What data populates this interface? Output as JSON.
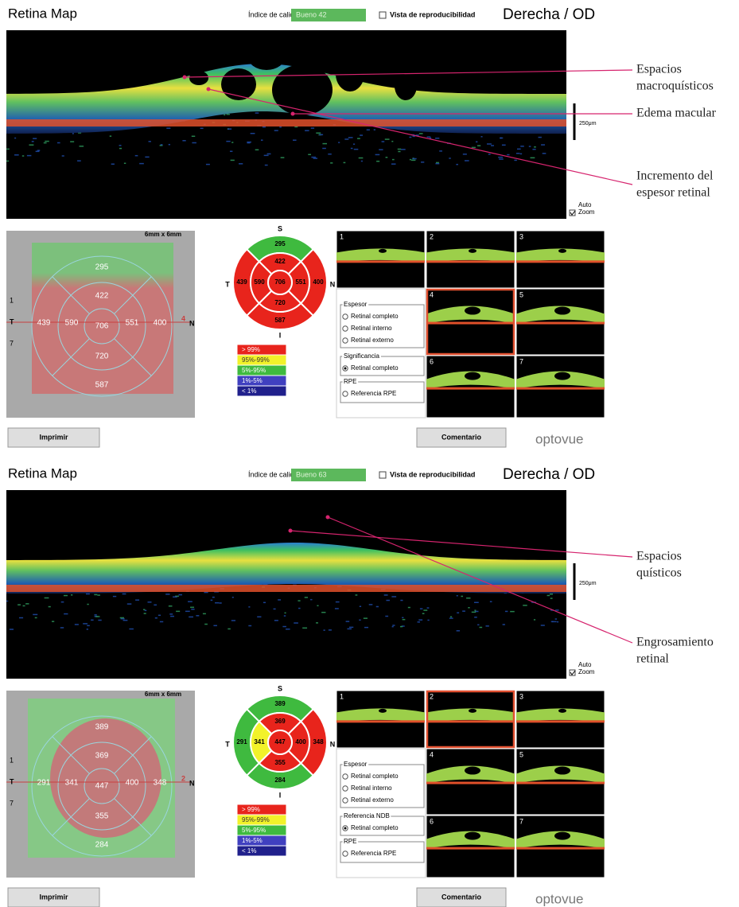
{
  "panels": [
    {
      "title": "Retina Map",
      "quality_label": "Índice de calidad",
      "quality": "Bueno  42",
      "reproducibility": "Vista de reproducibilidad",
      "eye": "Derecha / OD",
      "scale": "250μm",
      "auto_zoom": [
        "Auto",
        "Zoom"
      ],
      "annotations": [
        [
          "Espacios",
          "macroquísticos"
        ],
        [
          "Edema macular"
        ],
        [
          "Incremento del",
          "espesor retinal"
        ]
      ],
      "fundus": {
        "size": "6mm x 6mm",
        "left_marks": [
          "1",
          "T",
          "7"
        ],
        "right_marks": [
          "4",
          "N"
        ]
      },
      "etdrs": {
        "directions": [
          "S",
          "T",
          "N",
          "I"
        ],
        "center": 706,
        "center_color": "#e8241c",
        "inner": [
          422,
          590,
          551,
          720
        ],
        "inner_colors": [
          "#e8241c",
          "#e8241c",
          "#e8241c",
          "#e8241c"
        ],
        "outer": [
          295,
          439,
          400,
          587
        ],
        "outer_colors": [
          "#3fba3f",
          "#e8241c",
          "#e8241c",
          "#e8241c"
        ]
      },
      "legend": [
        {
          "label": "> 99%",
          "color": "#e8241c"
        },
        {
          "label": "95%-99%",
          "color": "#f2f22a"
        },
        {
          "label": "5%-95%",
          "color": "#3fba3f"
        },
        {
          "label": "1%-5%",
          "color": "#4040c0"
        },
        {
          "label": "< 1%",
          "color": "#20208c"
        }
      ],
      "thumbnails": [
        "1",
        "2",
        "3",
        "4",
        "5",
        "6",
        "7"
      ],
      "selected_thumbnail": 3,
      "option_groups": [
        {
          "title": "Espesor",
          "options": [
            "Retinal completo",
            "Retinal interno",
            "Retinal externo"
          ]
        },
        {
          "title": "Significancia",
          "options": [
            "Retinal completo"
          ],
          "checked": 0
        },
        {
          "title": "RPE",
          "options": [
            "Referencia RPE"
          ]
        }
      ],
      "buttons": [
        "Imprimir",
        "Comentario"
      ],
      "logo": "optovue"
    },
    {
      "title": "Retina Map",
      "quality_label": "Índice de calidad",
      "quality": "Bueno  63",
      "reproducibility": "Vista de reproducibilidad",
      "eye": "Derecha / OD",
      "scale": "250μm",
      "auto_zoom": [
        "Auto",
        "Zoom"
      ],
      "annotations": [
        [
          "Espacios",
          "quísticos"
        ],
        [
          "Engrosamiento",
          "retinal"
        ]
      ],
      "fundus": {
        "size": "6mm x 6mm",
        "left_marks": [
          "1",
          "T",
          "7"
        ],
        "right_marks": [
          "2",
          "N"
        ]
      },
      "etdrs": {
        "directions": [
          "S",
          "T",
          "N",
          "I"
        ],
        "center": 447,
        "center_color": "#e8241c",
        "inner": [
          369,
          341,
          400,
          355
        ],
        "inner_colors": [
          "#e8241c",
          "#f2f22a",
          "#e8241c",
          "#e8241c"
        ],
        "outer": [
          389,
          291,
          348,
          284
        ],
        "outer_colors": [
          "#3fba3f",
          "#3fba3f",
          "#e8241c",
          "#3fba3f"
        ]
      },
      "legend": [
        {
          "label": "> 99%",
          "color": "#e8241c"
        },
        {
          "label": "95%-99%",
          "color": "#f2f22a"
        },
        {
          "label": "5%-95%",
          "color": "#3fba3f"
        },
        {
          "label": "1%-5%",
          "color": "#4040c0"
        },
        {
          "label": "< 1%",
          "color": "#20208c"
        }
      ],
      "thumbnails": [
        "1",
        "2",
        "3",
        "4",
        "5",
        "6",
        "7"
      ],
      "selected_thumbnail": 1,
      "option_groups": [
        {
          "title": "Espesor",
          "options": [
            "Retinal completo",
            "Retinal interno",
            "Retinal externo"
          ]
        },
        {
          "title": "Referencia NDB",
          "options": [
            "Retinal completo"
          ],
          "checked": 0
        },
        {
          "title": "RPE",
          "options": [
            "Referencia RPE"
          ]
        }
      ],
      "buttons": [
        "Imprimir",
        "Comentario"
      ],
      "logo": "optovue"
    }
  ]
}
